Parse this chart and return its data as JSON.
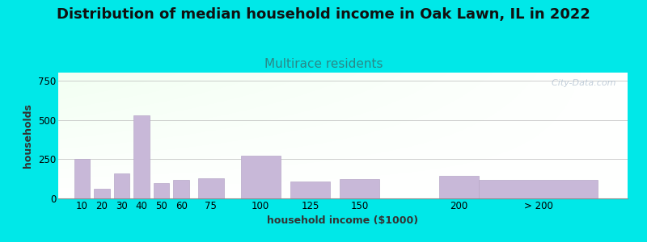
{
  "title": "Distribution of median household income in Oak Lawn, IL in 2022",
  "subtitle": "Multirace residents",
  "xlabel": "household income ($1000)",
  "ylabel": "households",
  "bar_labels": [
    "10",
    "20",
    "30",
    "40",
    "50",
    "60",
    "75",
    "100",
    "125",
    "150",
    "200",
    "> 200"
  ],
  "bar_values": [
    250,
    60,
    160,
    530,
    100,
    120,
    130,
    270,
    110,
    125,
    145,
    120
  ],
  "bar_widths": [
    1,
    1,
    1,
    1,
    1,
    1,
    1,
    1,
    1,
    1,
    1,
    2.5
  ],
  "bar_color": "#c8b8d8",
  "bar_edgecolor": "#b8a8c8",
  "ylim": [
    0,
    800
  ],
  "yticks": [
    0,
    250,
    500,
    750
  ],
  "background_outer": "#00e8e8",
  "background_plot_topleft": "#cce8cc",
  "background_plot_right": "#f0f8f0",
  "background_plot_bottom": "#ffffff",
  "watermark": "  City-Data.com",
  "title_fontsize": 13,
  "subtitle_fontsize": 11,
  "subtitle_color": "#2a8888",
  "axis_label_fontsize": 9,
  "tick_fontsize": 8.5,
  "title_color": "#111111"
}
